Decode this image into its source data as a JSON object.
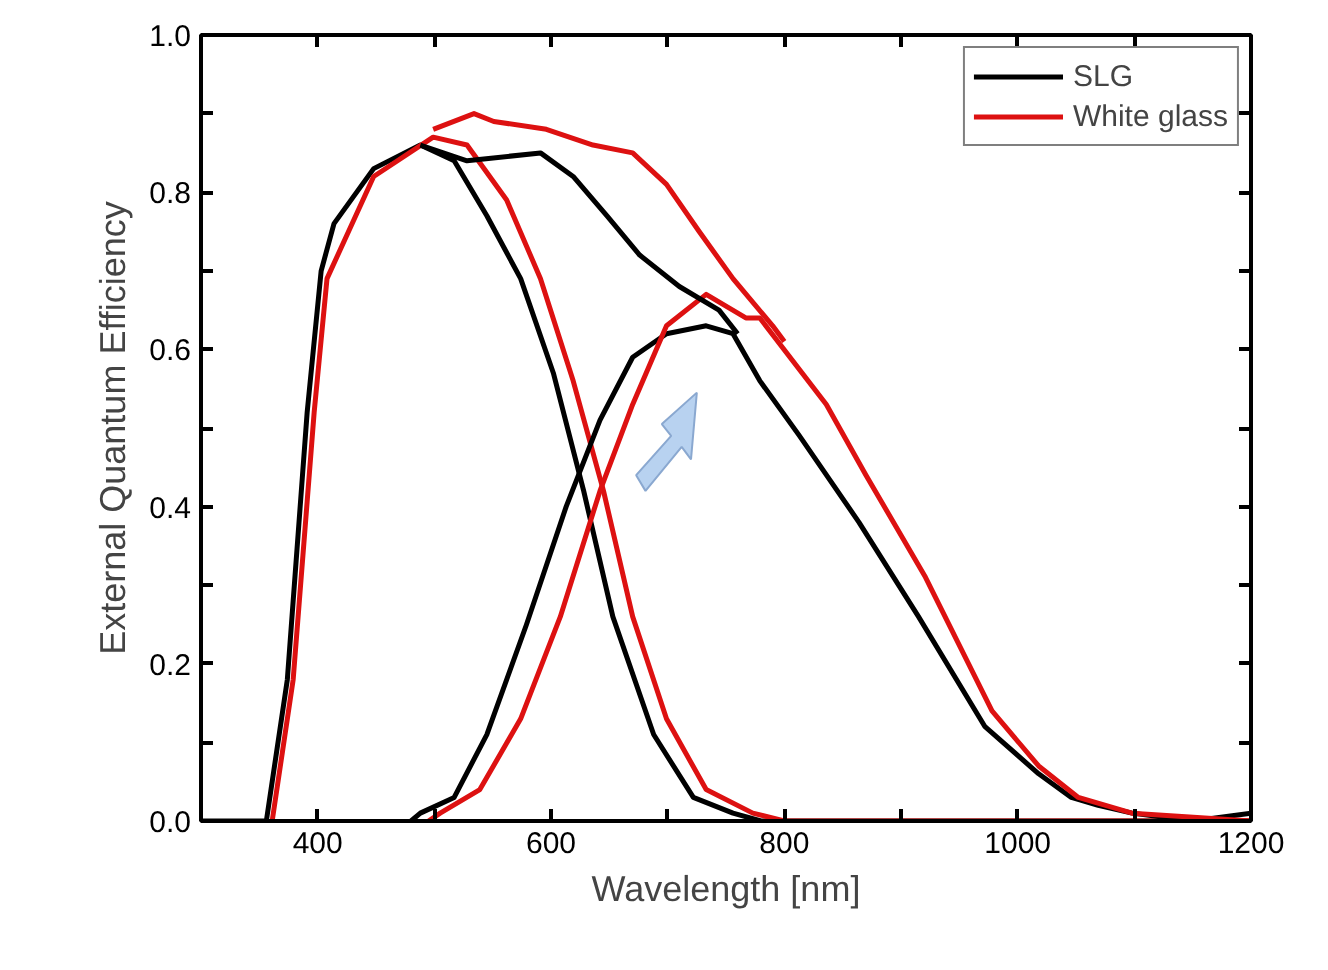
{
  "chart_data": {
    "type": "line",
    "xlabel": "Wavelength [nm]",
    "ylabel": "External Quantum Efficiency",
    "xlim": [
      300,
      1200
    ],
    "ylim": [
      0,
      1.0
    ],
    "xticks": [
      400,
      {
        "value": 500,
        "label": null
      },
      600,
      {
        "value": 700,
        "label": null
      },
      800,
      {
        "value": 900,
        "label": null
      },
      1000,
      {
        "value": 1100,
        "label": null
      },
      1200
    ],
    "yticks": [
      "0.0",
      {
        "value": 0.1,
        "label": null
      },
      0.2,
      {
        "value": 0.3,
        "label": null
      },
      0.4,
      {
        "value": 0.5,
        "label": null
      },
      0.6,
      {
        "value": 0.7,
        "label": null
      },
      0.8,
      {
        "value": 0.9,
        "label": null
      },
      "1.0"
    ],
    "legend": "top right",
    "grid": false,
    "marker": "none",
    "line_style": "solid",
    "series": [
      {
        "name": "SLG",
        "color": "#000000",
        "x": [
          300,
          340,
          356,
          374,
          391,
          403,
          414,
          448,
          488,
          517,
          545,
          574,
          602,
          628,
          653,
          688,
          722,
          756,
          780,
          1200
        ],
        "values": [
          0,
          0,
          0,
          0.18,
          0.52,
          0.7,
          0.76,
          0.83,
          0.86,
          0.84,
          0.77,
          0.69,
          0.57,
          0.42,
          0.26,
          0.11,
          0.03,
          0.01,
          0,
          0
        ]
      },
      {
        "name": "White glass",
        "color": "#dd1111",
        "x": [
          361,
          379,
          397,
          408,
          448,
          499,
          528,
          562,
          591,
          619,
          645,
          670,
          699,
          733,
          773,
          800,
          1200
        ],
        "values": [
          0,
          0.18,
          0.52,
          0.69,
          0.82,
          0.87,
          0.86,
          0.79,
          0.69,
          0.56,
          0.42,
          0.26,
          0.13,
          0.04,
          0.01,
          0,
          0
        ]
      },
      {
        "color": "#000000",
        "x": [
          480,
          488,
          517,
          545,
          579,
          613,
          642,
          670,
          699,
          733,
          756,
          779,
          813,
          864,
          915,
          972,
          1018,
          1046,
          1069,
          1098,
          1150,
          1200
        ],
        "values": [
          0,
          0.01,
          0.03,
          0.11,
          0.25,
          0.4,
          0.51,
          0.59,
          0.62,
          0.63,
          0.62,
          0.56,
          0.49,
          0.38,
          0.26,
          0.12,
          0.06,
          0.03,
          0.02,
          0.01,
          0,
          0.01
        ]
      },
      {
        "color": "#dd1111",
        "x": [
          495,
          505,
          539,
          574,
          608,
          642,
          670,
          699,
          733,
          767,
          779,
          836,
          870,
          921,
          978,
          1018,
          1052,
          1098,
          1200
        ],
        "values": [
          0,
          0.01,
          0.04,
          0.13,
          0.26,
          0.42,
          0.53,
          0.63,
          0.67,
          0.64,
          0.64,
          0.53,
          0.44,
          0.31,
          0.14,
          0.07,
          0.03,
          0.01,
          0
        ]
      },
      {
        "color": "#000000",
        "x": [
          488,
          528,
          591,
          619,
          648,
          676,
          710,
          744,
          760
        ],
        "values": [
          0.86,
          0.84,
          0.85,
          0.82,
          0.77,
          0.72,
          0.68,
          0.65,
          0.62
        ]
      },
      {
        "color": "#dd1111",
        "x": [
          499,
          534,
          551,
          596,
          636,
          670,
          699,
          727,
          756,
          790,
          800
        ],
        "values": [
          0.88,
          0.9,
          0.89,
          0.88,
          0.86,
          0.85,
          0.81,
          0.75,
          0.69,
          0.63,
          0.61
        ]
      }
    ]
  }
}
